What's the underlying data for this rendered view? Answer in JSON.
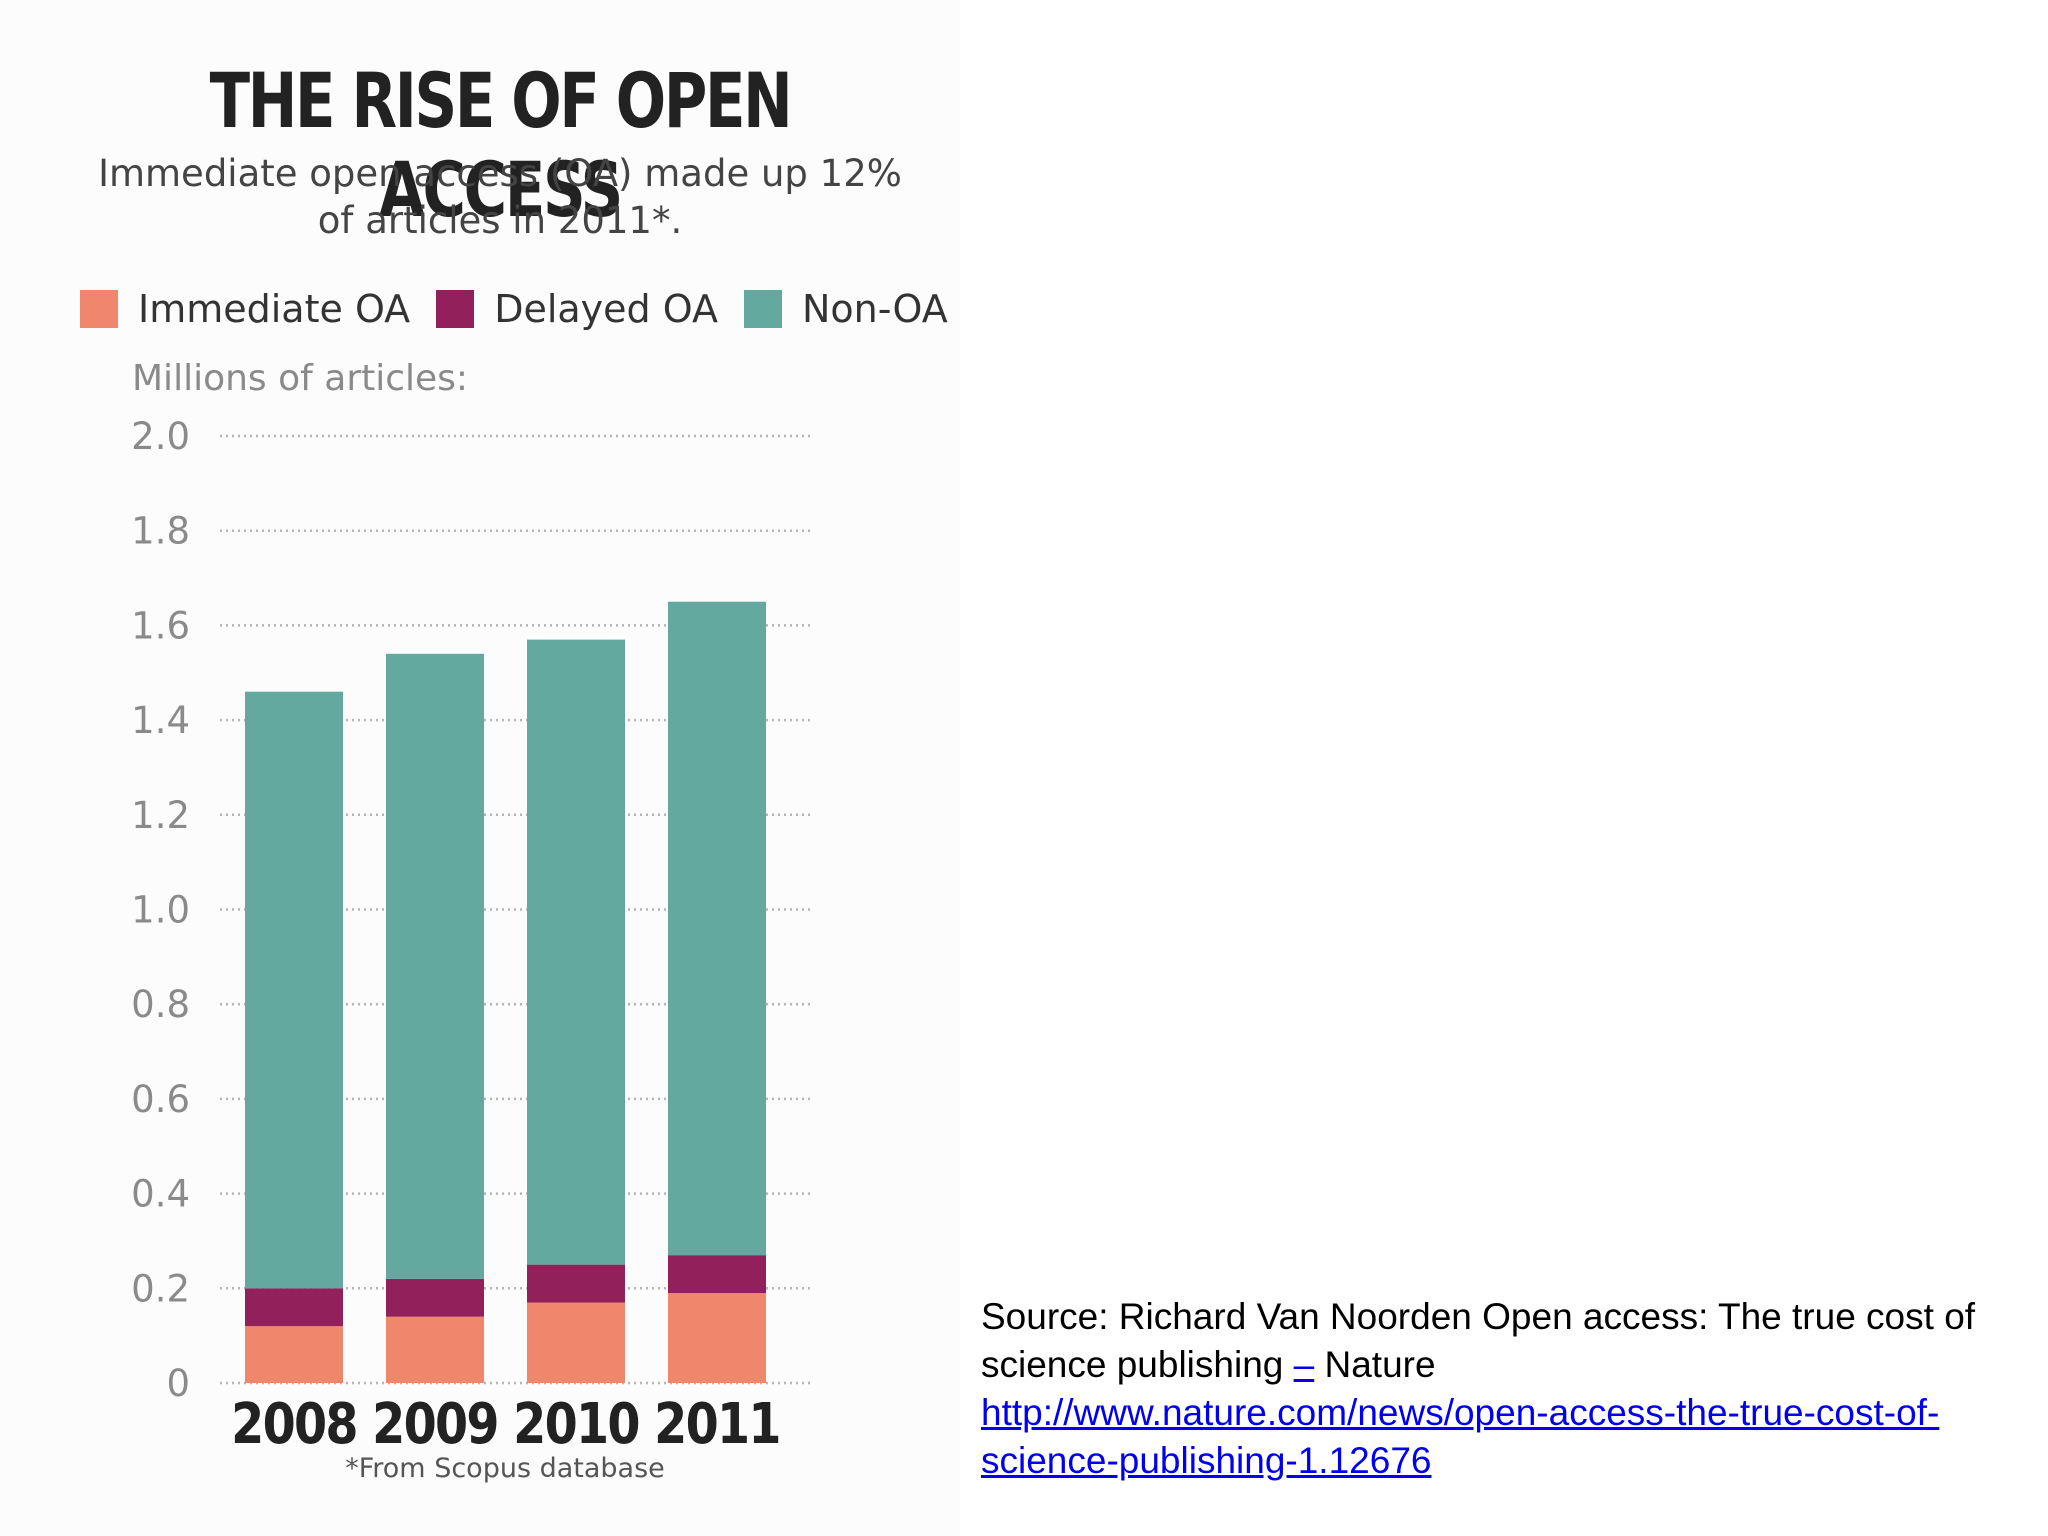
{
  "chart_data": {
    "type": "bar",
    "stacked": true,
    "title": "THE RISE OF OPEN ACCESS",
    "subtitle": "Immediate open access (OA) made up 12% of articles in 2011*.",
    "ylabel": "Millions of articles:",
    "categories": [
      "2008",
      "2009",
      "2010",
      "2011"
    ],
    "series": [
      {
        "name": "Immediate OA",
        "color": "#f0876c",
        "values": [
          0.12,
          0.14,
          0.17,
          0.19
        ]
      },
      {
        "name": "Delayed OA",
        "color": "#92205a",
        "values": [
          0.08,
          0.08,
          0.08,
          0.08
        ]
      },
      {
        "name": "Non-OA",
        "color": "#64a9a0",
        "values": [
          1.26,
          1.32,
          1.32,
          1.38
        ]
      }
    ],
    "ylim": [
      0,
      2.0
    ],
    "yticks": [
      "0",
      "0.2",
      "0.4",
      "0.6",
      "0.8",
      "1.0",
      "1.2",
      "1.4",
      "1.6",
      "1.8",
      "2.0"
    ],
    "grid": true,
    "legend_position": "top",
    "footnote": "*From Scopus database"
  },
  "source": {
    "prefix": "Source: Richard Van Noorden Open access: The true cost of science publishing ",
    "dash": "–",
    "suffix": " Nature",
    "url": "http://www.nature.com/news/open-access-the-true-cost-of-science-publishing-1.12676"
  },
  "colors": {
    "axis_text": "#8a8a8a",
    "grid": "#b5b5b5",
    "panel_bg": "#fdfcfd"
  }
}
